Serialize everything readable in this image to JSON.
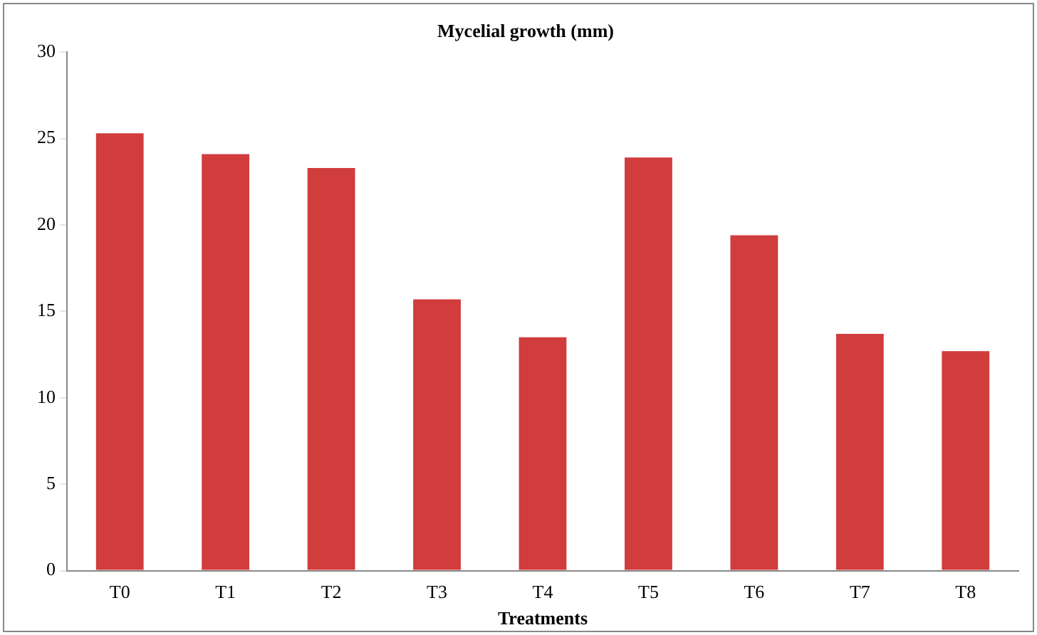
{
  "chart_data": {
    "type": "bar",
    "title": "Mycelial growth (mm)",
    "xlabel": "Treatments",
    "categories": [
      "T0",
      "T1",
      "T2",
      "T3",
      "T4",
      "T5",
      "T6",
      "T7",
      "T8"
    ],
    "values": [
      25.3,
      24.1,
      23.3,
      15.7,
      13.5,
      23.9,
      19.4,
      13.7,
      12.7
    ],
    "color": "#d13c3c",
    "ylim": [
      0,
      30
    ],
    "yticks": [
      0,
      5,
      10,
      15,
      20,
      25,
      30
    ],
    "grid": false,
    "legend": false
  }
}
